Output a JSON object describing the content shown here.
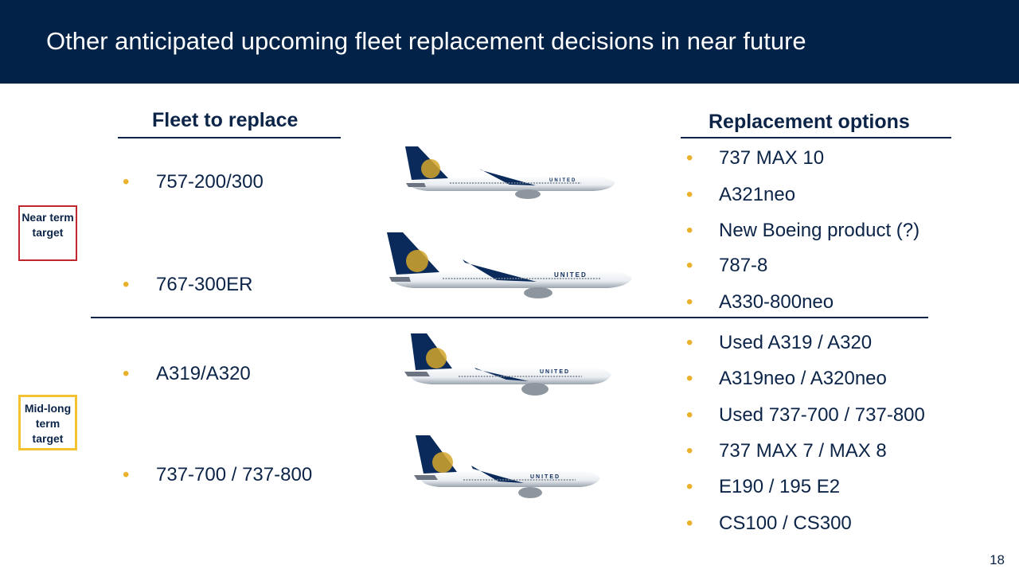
{
  "header": {
    "title": "Other anticipated upcoming fleet replacement decisions in near future"
  },
  "columns": {
    "fleet": "Fleet to replace",
    "options": "Replacement options"
  },
  "fleet_items": [
    "757-200/300",
    "767-300ER",
    "A319/A320",
    "737-700 / 737-800"
  ],
  "replacement_options": [
    "737 MAX 10",
    "A321neo",
    "New Boeing product (?)",
    "787-8",
    "A330-800neo",
    "Used A319 / A320",
    "A319neo / A320neo",
    "Used 737-700 / 737-800",
    "737 MAX 7 / MAX 8",
    "E190 / 195 E2",
    "CS100 / CS300"
  ],
  "tags": {
    "near": "Near term target",
    "mid": "Mid-long term target"
  },
  "planes": {
    "livery_text": "UNITED"
  },
  "colors": {
    "navy": "#022248",
    "gold": "#e9b12c",
    "near_border": "#c0272d",
    "mid_border": "#f2c230"
  },
  "bullet": "•",
  "page_number": "18"
}
